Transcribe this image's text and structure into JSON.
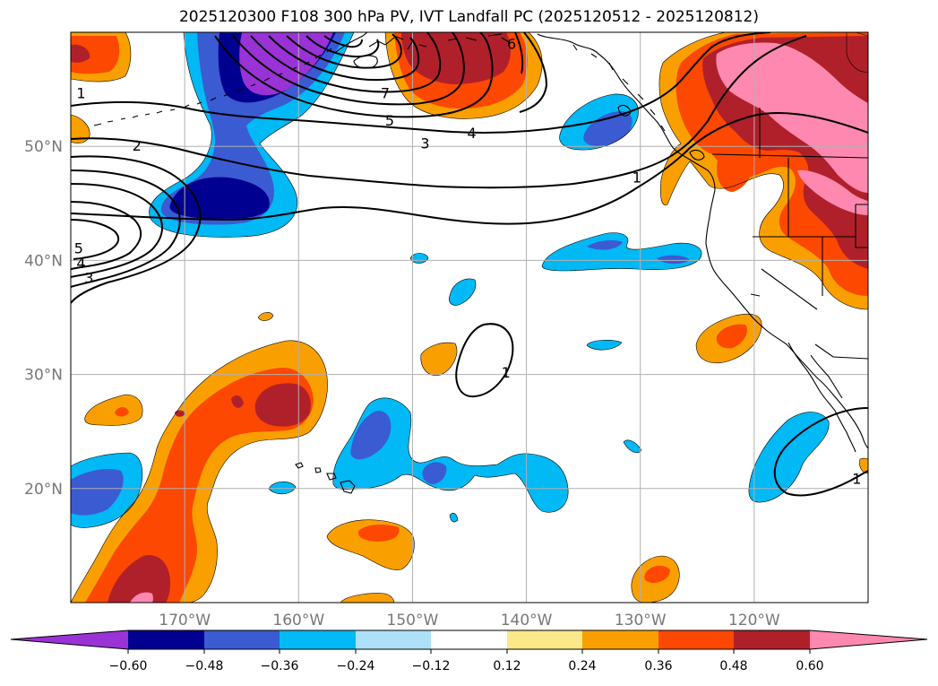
{
  "title": "2025120300 F108 300 hPa PV, IVT Landfall PC (2025120512 - 2025120812)",
  "colors": {
    "neg_extend": "#9933d6",
    "neg_060": "#000090",
    "neg_048": "#3a5bd2",
    "neg_036": "#00b9f5",
    "neg_024": "#aee0f8",
    "neutral": "#ffffff",
    "pos_012": "#fbe888",
    "pos_024": "#f9a000",
    "pos_036": "#fc4800",
    "pos_048": "#b0202a",
    "pos_060": "#ff88b0",
    "contour": "#000000",
    "grid": "#b0b0b0",
    "coast": "#000000"
  },
  "map": {
    "lon_range": [
      -180,
      -110
    ],
    "lat_range": [
      10,
      60
    ],
    "lon_ticks": [
      {
        "value": -170,
        "label": "170°W"
      },
      {
        "value": -160,
        "label": "160°W"
      },
      {
        "value": -150,
        "label": "150°W"
      },
      {
        "value": -140,
        "label": "140°W"
      },
      {
        "value": -130,
        "label": "130°W"
      },
      {
        "value": -120,
        "label": "120°W"
      }
    ],
    "lat_ticks": [
      {
        "value": 50,
        "label": "50°N"
      },
      {
        "value": 40,
        "label": "40°N"
      },
      {
        "value": 30,
        "label": "30°N"
      },
      {
        "value": 20,
        "label": "20°N"
      }
    ]
  },
  "contour_labels": [
    {
      "text": "1",
      "lon": -179.1,
      "lat": 54.7
    },
    {
      "text": "2",
      "lon": -174.2,
      "lat": 50.1
    },
    {
      "text": "7",
      "lon": -152.4,
      "lat": 54.7
    },
    {
      "text": "5",
      "lon": -152.0,
      "lat": 52.3
    },
    {
      "text": "3",
      "lon": -148.9,
      "lat": 50.3
    },
    {
      "text": "4",
      "lon": -144.8,
      "lat": 51.2
    },
    {
      "text": "6",
      "lon": -141.3,
      "lat": 59.0
    },
    {
      "text": "1",
      "lon": -130.3,
      "lat": 47.3
    },
    {
      "text": "5",
      "lon": -179.3,
      "lat": 41.1
    },
    {
      "text": "4",
      "lon": -179.1,
      "lat": 39.8
    },
    {
      "text": "3",
      "lon": -178.4,
      "lat": 38.5
    },
    {
      "text": "1",
      "lon": -141.8,
      "lat": 30.2
    },
    {
      "text": "1",
      "lon": -111.0,
      "lat": 20.9
    }
  ],
  "colorbar": {
    "boundaries": [
      -0.6,
      -0.48,
      -0.36,
      -0.24,
      -0.12,
      0.12,
      0.24,
      0.36,
      0.48,
      0.6
    ],
    "tick_labels": [
      "−0.60",
      "−0.48",
      "−0.36",
      "−0.24",
      "−0.12",
      "0.12",
      "0.24",
      "0.36",
      "0.48",
      "0.60"
    ]
  }
}
